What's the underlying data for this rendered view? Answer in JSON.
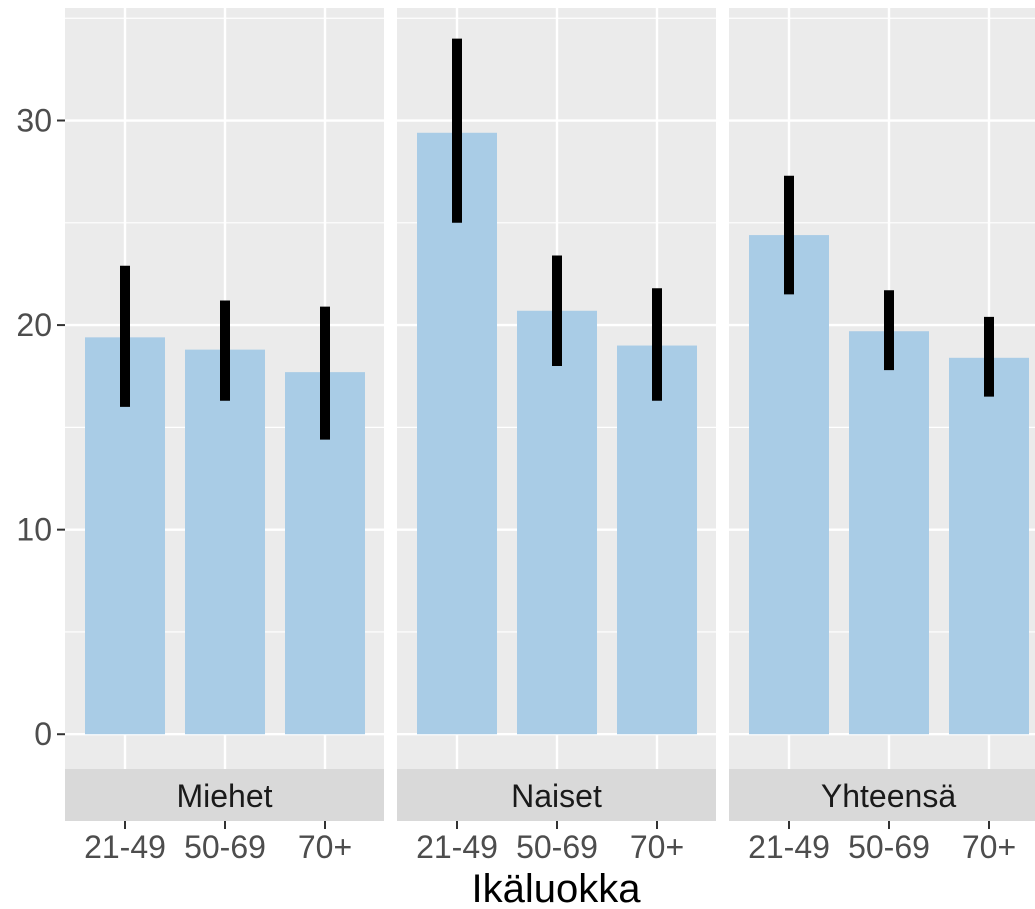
{
  "chart_data": {
    "type": "bar",
    "title": "",
    "xlabel": "Ikäluokka",
    "ylabel": "",
    "ylim": [
      -1.7,
      35.5
    ],
    "yticks": [
      0,
      10,
      20,
      30
    ],
    "grid": true,
    "legend": "none",
    "colors": {
      "bar": "#a9cce6",
      "error_bar": "#000000",
      "panel_bg": "#ebebeb",
      "grid": "#ffffff",
      "strip_bg": "#d9d9d9"
    },
    "categories": [
      "21-49",
      "50-69",
      "70+"
    ],
    "panels": [
      {
        "name": "Miehet",
        "values": [
          19.4,
          18.8,
          17.7
        ],
        "lower": [
          16.0,
          16.3,
          14.4
        ],
        "upper": [
          22.9,
          21.2,
          20.9
        ]
      },
      {
        "name": "Naiset",
        "values": [
          29.4,
          20.7,
          19.0
        ],
        "lower": [
          25.0,
          18.0,
          16.3
        ],
        "upper": [
          34.0,
          23.4,
          21.8
        ]
      },
      {
        "name": "Yhteensä",
        "values": [
          24.4,
          19.7,
          18.4
        ],
        "lower": [
          21.5,
          17.8,
          16.5
        ],
        "upper": [
          27.3,
          21.7,
          20.4
        ]
      }
    ]
  }
}
